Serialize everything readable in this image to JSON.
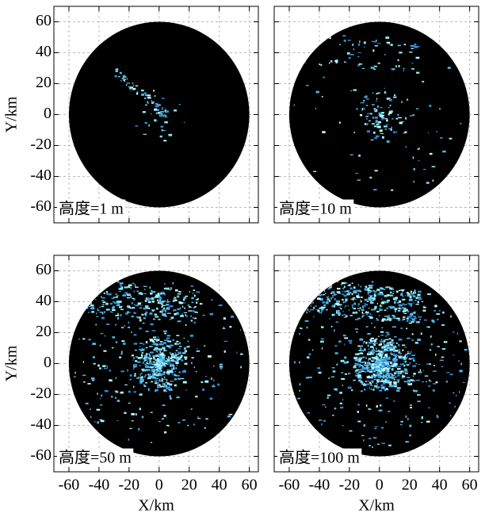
{
  "chart_data": [
    {
      "type": "radar-coverage",
      "annotation": "高度=1 m",
      "y_label": "Y/km",
      "xlim": [
        -70,
        66
      ],
      "ylim": [
        -70,
        70
      ],
      "xticks": [
        -60,
        -40,
        -20,
        0,
        20,
        40,
        60
      ],
      "yticks": [
        60,
        40,
        20,
        0,
        -20,
        -40,
        -60
      ],
      "radius": 60,
      "color": "#000000",
      "grid": true
    },
    {
      "type": "radar-coverage",
      "annotation": "高度=10 m",
      "xlim": [
        -70,
        66
      ],
      "ylim": [
        -70,
        70
      ],
      "xticks": [
        -60,
        -40,
        -20,
        0,
        20,
        40,
        60
      ],
      "yticks": [
        60,
        40,
        20,
        0,
        -20,
        -40,
        -60
      ],
      "radius": 60,
      "color": "#000000",
      "grid": true
    },
    {
      "type": "radar-coverage",
      "annotation": "高度=50 m",
      "x_label": "X/km",
      "y_label": "Y/km",
      "xlim": [
        -70,
        66
      ],
      "ylim": [
        -70,
        70
      ],
      "xticks": [
        -60,
        -40,
        -20,
        0,
        20,
        40,
        60
      ],
      "yticks": [
        60,
        40,
        20,
        0,
        -20,
        -40,
        -60
      ],
      "radius": 60,
      "color": "#000000",
      "grid": true
    },
    {
      "type": "radar-coverage",
      "annotation": "高度=100 m",
      "x_label": "X/km",
      "xlim": [
        -70,
        66
      ],
      "ylim": [
        -70,
        70
      ],
      "xticks": [
        -60,
        -40,
        -20,
        0,
        20,
        40,
        60
      ],
      "yticks": [
        60,
        40,
        20,
        0,
        -20,
        -40,
        -60
      ],
      "radius": 60,
      "color": "#000000",
      "grid": true
    }
  ]
}
